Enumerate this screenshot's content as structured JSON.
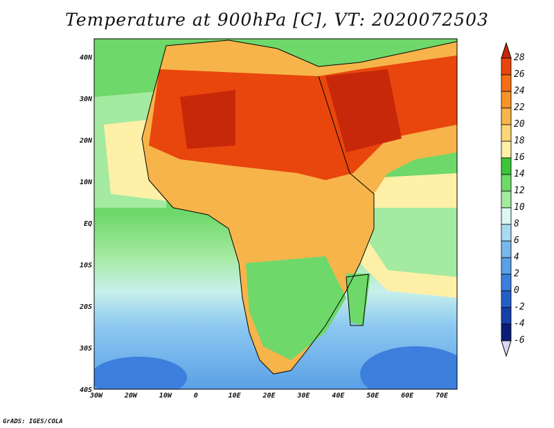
{
  "title": "Temperature at 900hPa [C], VT: 2020072503",
  "footer": "GrADS: IGES/COLA",
  "lat_labels": [
    "40N",
    "30N",
    "20N",
    "10N",
    "EQ",
    "10S",
    "20S",
    "30S",
    "40S"
  ],
  "lon_labels": [
    "30W",
    "20W",
    "10W",
    "0",
    "10E",
    "20E",
    "30E",
    "40E",
    "50E",
    "60E",
    "70E"
  ],
  "colorbar": {
    "unit": "C",
    "levels": [
      "28",
      "26",
      "24",
      "22",
      "20",
      "18",
      "16",
      "14",
      "12",
      "10",
      "8",
      "6",
      "4",
      "2",
      "0",
      "-2",
      "-4",
      "-6"
    ],
    "colors": [
      "#c8280a",
      "#e8460c",
      "#f46e16",
      "#f7942a",
      "#f7b44a",
      "#fbd776",
      "#fff0a8",
      "#3cc43a",
      "#6ed86a",
      "#a4eaa0",
      "#dcf7f2",
      "#a8daf2",
      "#7ab8ec",
      "#5aa0e6",
      "#3c7fdc",
      "#245fc8",
      "#1440a8",
      "#0a1e78"
    ],
    "top_arrow_color": "#c8280a",
    "bottom_arrow_color": "#dcd8f4"
  },
  "palette": {
    "ocean_cool": "#8cc8f0",
    "ocean_mid": "#c8f0ec",
    "green": "#6ed86a",
    "green_light": "#a4eaa0",
    "yellow": "#fff0a8",
    "orange": "#f7b44a",
    "hot": "#e8460c"
  }
}
